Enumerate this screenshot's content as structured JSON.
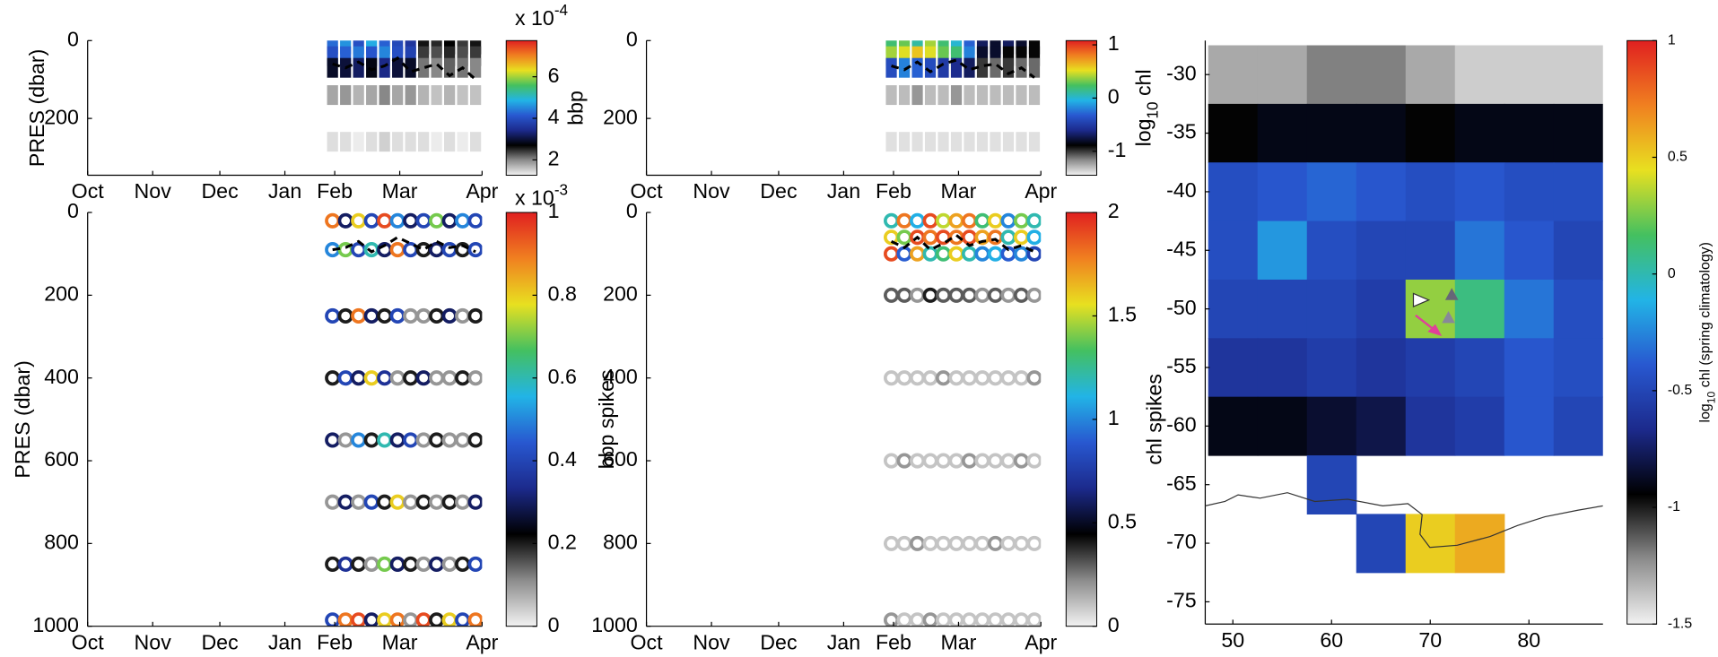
{
  "chart_data": [
    {
      "type": "scatter",
      "marker": "filled",
      "xlim": [
        0,
        182
      ],
      "xticks": [
        {
          "value": 0,
          "label": "Oct"
        },
        {
          "value": 30,
          "label": "Nov"
        },
        {
          "value": 61,
          "label": "Dec"
        },
        {
          "value": 91,
          "label": "Jan"
        },
        {
          "value": 114,
          "label": "Feb"
        },
        {
          "value": 144,
          "label": "Mar"
        },
        {
          "value": 182,
          "label": "Apr"
        }
      ],
      "ylim": [
        346,
        0
      ],
      "yticks": [
        0,
        200
      ],
      "y_label": "PRES (dbar)",
      "x": [
        113,
        119,
        125,
        131,
        137,
        143,
        149,
        155,
        161,
        167,
        173,
        179
      ],
      "depths": [
        10,
        40,
        70,
        140,
        260
      ],
      "c": [
        [
          4.3,
          4.0,
          2.9,
          1.8,
          1.4
        ],
        [
          4.6,
          4.2,
          3.0,
          1.9,
          1.4
        ],
        [
          4.0,
          4.4,
          3.2,
          1.7,
          1.3
        ],
        [
          4.8,
          4.1,
          2.8,
          1.8,
          1.4
        ],
        [
          4.2,
          4.5,
          3.4,
          2.0,
          1.5
        ],
        [
          3.9,
          4.0,
          3.0,
          1.8,
          1.4
        ],
        [
          3.6,
          3.8,
          2.9,
          1.9,
          1.4
        ],
        [
          2.6,
          2.4,
          2.1,
          1.7,
          1.4
        ],
        [
          2.5,
          2.3,
          2.0,
          1.6,
          1.3
        ],
        [
          2.7,
          2.5,
          2.2,
          1.7,
          1.4
        ],
        [
          2.4,
          2.3,
          2.1,
          1.6,
          1.3
        ],
        [
          2.6,
          2.4,
          2.0,
          1.6,
          1.4
        ]
      ],
      "line": {
        "x": [
          113,
          119,
          125,
          131,
          137,
          143,
          149,
          155,
          161,
          167,
          173,
          179
        ],
        "y": [
          60,
          70,
          55,
          75,
          65,
          45,
          80,
          70,
          60,
          90,
          70,
          100
        ]
      },
      "line_color": "#000000",
      "line_style": "dashed",
      "clim": [
        1.26,
        7.74
      ],
      "cticks": [
        2,
        4,
        6
      ],
      "colorbar_label": [
        "bbp"
      ],
      "colorbar_multiplier": [
        "x 10",
        "-4"
      ],
      "colormap": [
        "#f2f2f2",
        "#8c8c8c",
        "#000000",
        "#1c2a8c",
        "#2858d0",
        "#22b4e6",
        "#44c060",
        "#e8e020",
        "#f08020",
        "#e02020"
      ]
    },
    {
      "type": "scatter",
      "marker": "filled",
      "xlim": [
        0,
        182
      ],
      "xticks": [
        {
          "value": 0,
          "label": "Oct"
        },
        {
          "value": 30,
          "label": "Nov"
        },
        {
          "value": 61,
          "label": "Dec"
        },
        {
          "value": 91,
          "label": "Jan"
        },
        {
          "value": 114,
          "label": "Feb"
        },
        {
          "value": 144,
          "label": "Mar"
        },
        {
          "value": 182,
          "label": "Apr"
        }
      ],
      "ylim": [
        346,
        0
      ],
      "yticks": [
        0,
        200
      ],
      "x": [
        113,
        119,
        125,
        131,
        137,
        143,
        149,
        155,
        161,
        167,
        173,
        179
      ],
      "depths": [
        10,
        40,
        70,
        140,
        260
      ],
      "c": [
        [
          0.2,
          0.4,
          -0.4,
          -1.3,
          -1.4
        ],
        [
          0.3,
          0.5,
          -0.2,
          -1.3,
          -1.4
        ],
        [
          0.1,
          0.6,
          -0.3,
          -1.2,
          -1.4
        ],
        [
          0.4,
          0.5,
          -0.4,
          -1.3,
          -1.4
        ],
        [
          0.2,
          0.3,
          -0.5,
          -1.3,
          -1.4
        ],
        [
          0.0,
          0.2,
          -0.6,
          -1.2,
          -1.4
        ],
        [
          -0.3,
          -0.2,
          -0.7,
          -1.3,
          -1.4
        ],
        [
          -0.7,
          -0.8,
          -1.0,
          -1.3,
          -1.4
        ],
        [
          -0.8,
          -0.8,
          -1.1,
          -1.3,
          -1.4
        ],
        [
          -0.7,
          -0.9,
          -1.0,
          -1.3,
          -1.4
        ],
        [
          -0.8,
          -0.9,
          -1.1,
          -1.3,
          -1.4
        ],
        [
          -0.9,
          -0.9,
          -1.1,
          -1.3,
          -1.4
        ]
      ],
      "line": {
        "x": [
          113,
          119,
          125,
          131,
          137,
          143,
          149,
          155,
          161,
          167,
          173,
          179
        ],
        "y": [
          65,
          75,
          55,
          80,
          60,
          50,
          75,
          65,
          60,
          85,
          70,
          95
        ]
      },
      "line_color": "#000000",
      "line_style": "dashed",
      "clim": [
        -1.45,
        1.08
      ],
      "cticks": [
        -1,
        0,
        1
      ],
      "colorbar_label": [
        "log",
        "10",
        " chl"
      ],
      "colormap": [
        "#f2f2f2",
        "#8c8c8c",
        "#000000",
        "#1c2a8c",
        "#2858d0",
        "#22b4e6",
        "#44c060",
        "#e8e020",
        "#f08020",
        "#e02020"
      ]
    },
    {
      "type": "scatter",
      "marker": "ring",
      "xlim": [
        0,
        182
      ],
      "xticks": [
        {
          "value": 0,
          "label": "Oct"
        },
        {
          "value": 30,
          "label": "Nov"
        },
        {
          "value": 61,
          "label": "Dec"
        },
        {
          "value": 91,
          "label": "Jan"
        },
        {
          "value": 114,
          "label": "Feb"
        },
        {
          "value": 144,
          "label": "Mar"
        },
        {
          "value": 182,
          "label": "Apr"
        }
      ],
      "ylim": [
        1000,
        0
      ],
      "yticks": [
        0,
        200,
        400,
        600,
        800,
        1000
      ],
      "y_label": "PRES (dbar)",
      "x": [
        113,
        119,
        125,
        131,
        137,
        143,
        149,
        155,
        161,
        167,
        173,
        179
      ],
      "depths": [
        20,
        90,
        250,
        400,
        550,
        700,
        850,
        985
      ],
      "c": [
        [
          0.9,
          0.5,
          0.4,
          0.2,
          0.3,
          0.1,
          0.2,
          0.4
        ],
        [
          0.3,
          0.7,
          0.2,
          0.4,
          0.1,
          0.3,
          0.35,
          0.9
        ],
        [
          0.8,
          0.4,
          0.9,
          0.3,
          0.5,
          0.1,
          0.2,
          0.95
        ],
        [
          0.4,
          0.6,
          0.3,
          0.8,
          0.2,
          0.4,
          0.1,
          0.3
        ],
        [
          0.95,
          0.3,
          0.2,
          0.35,
          0.6,
          0.2,
          0.7,
          0.8
        ],
        [
          0.5,
          0.9,
          0.4,
          0.1,
          0.3,
          0.8,
          0.3,
          0.9
        ],
        [
          0.3,
          0.4,
          0.1,
          0.2,
          0.4,
          0.1,
          0.2,
          0.1
        ],
        [
          0.4,
          0.2,
          0.1,
          0.3,
          0.1,
          0.2,
          0.1,
          0.95
        ],
        [
          0.7,
          0.3,
          0.2,
          0.1,
          0.2,
          0.1,
          0.3,
          0.2
        ],
        [
          0.3,
          0.4,
          0.3,
          0.1,
          0.1,
          0.2,
          0.1,
          0.8
        ],
        [
          0.5,
          0.2,
          0.1,
          0.2,
          0.1,
          0.1,
          0.2,
          0.4
        ],
        [
          0.4,
          0.4,
          0.2,
          0.1,
          0.2,
          0.3,
          0.4,
          0.9
        ]
      ],
      "line": {
        "x": [
          113,
          119,
          125,
          131,
          137,
          143,
          149,
          155,
          161,
          167,
          173,
          179
        ],
        "y": [
          90,
          85,
          70,
          95,
          80,
          60,
          75,
          90,
          70,
          85,
          80,
          95
        ]
      },
      "line_color": "#000000",
      "line_style": "dashed",
      "clim": [
        0,
        1
      ],
      "cticks": [
        0,
        0.2,
        0.4,
        0.6,
        0.8,
        1
      ],
      "colorbar_label": [
        "bbp spikes"
      ],
      "colorbar_multiplier": [
        "x 10",
        "-3"
      ],
      "colormap": [
        "#f2f2f2",
        "#8c8c8c",
        "#000000",
        "#1c2a8c",
        "#2858d0",
        "#22b4e6",
        "#44c060",
        "#e8e020",
        "#f08020",
        "#e02020"
      ]
    },
    {
      "type": "scatter",
      "marker": "ring",
      "xlim": [
        0,
        182
      ],
      "xticks": [
        {
          "value": 0,
          "label": "Oct"
        },
        {
          "value": 30,
          "label": "Nov"
        },
        {
          "value": 61,
          "label": "Dec"
        },
        {
          "value": 91,
          "label": "Jan"
        },
        {
          "value": 114,
          "label": "Feb"
        },
        {
          "value": 144,
          "label": "Mar"
        },
        {
          "value": 182,
          "label": "Apr"
        }
      ],
      "ylim": [
        1000,
        0
      ],
      "yticks": [
        0,
        200,
        400,
        600,
        800,
        1000
      ],
      "x": [
        113,
        119,
        125,
        131,
        137,
        143,
        149,
        155,
        161,
        167,
        173,
        179
      ],
      "depths": [
        20,
        60,
        100,
        200,
        400,
        600,
        800,
        985
      ],
      "c": [
        [
          1.2,
          1.6,
          1.9,
          0.3,
          0.1,
          0.1,
          0.1,
          0.2
        ],
        [
          1.8,
          1.4,
          0.9,
          0.3,
          0.1,
          0.2,
          0.1,
          0.1
        ],
        [
          1.1,
          1.9,
          1.7,
          0.2,
          0.1,
          0.1,
          0.2,
          0.1
        ],
        [
          1.9,
          1.8,
          1.2,
          0.4,
          0.1,
          0.1,
          0.1,
          0.2
        ],
        [
          1.5,
          1.9,
          1.3,
          0.3,
          0.2,
          0.1,
          0.1,
          0.1
        ],
        [
          1.7,
          1.8,
          1.6,
          0.3,
          0.1,
          0.1,
          0.1,
          0.1
        ],
        [
          1.8,
          1.9,
          1.2,
          0.3,
          0.1,
          0.2,
          0.1,
          0.1
        ],
        [
          1.3,
          1.7,
          1.0,
          0.2,
          0.1,
          0.1,
          0.1,
          0.1
        ],
        [
          1.6,
          1.8,
          1.1,
          0.3,
          0.1,
          0.1,
          0.2,
          0.1
        ],
        [
          1.0,
          1.2,
          0.9,
          0.2,
          0.1,
          0.1,
          0.1,
          0.1
        ],
        [
          1.4,
          1.6,
          1.0,
          0.3,
          0.1,
          0.2,
          0.1,
          0.1
        ],
        [
          1.2,
          1.1,
          0.8,
          0.2,
          0.2,
          0.1,
          0.1,
          0.1
        ]
      ],
      "line": {
        "x": [
          113,
          119,
          125,
          131,
          137,
          143,
          149,
          155,
          161,
          167,
          173,
          179
        ],
        "y": [
          70,
          85,
          60,
          90,
          75,
          55,
          80,
          70,
          65,
          90,
          80,
          95
        ]
      },
      "line_color": "#000000",
      "line_style": "dashed",
      "clim": [
        0,
        2
      ],
      "cticks": [
        0,
        0.5,
        1,
        1.5,
        2
      ],
      "colorbar_label": [
        "chl spikes"
      ],
      "colormap": [
        "#f2f2f2",
        "#8c8c8c",
        "#000000",
        "#1c2a8c",
        "#2858d0",
        "#22b4e6",
        "#44c060",
        "#e8e020",
        "#f08020",
        "#e02020"
      ]
    },
    {
      "type": "heatmap",
      "xlim": [
        47.2,
        87.5
      ],
      "xticks": [
        50,
        60,
        70,
        80
      ],
      "ylim": [
        -76.9,
        -27.1
      ],
      "yticks": [
        -30,
        -35,
        -40,
        -45,
        -50,
        -55,
        -60,
        -65,
        -70,
        -75
      ],
      "lon": [
        50,
        55,
        60,
        65,
        70,
        75,
        80,
        85
      ],
      "lat": [
        -30,
        -35,
        -40,
        -45,
        -50,
        -55,
        -60,
        -65,
        -70
      ],
      "z": [
        [
          -1.3,
          -1.3,
          -1.2,
          -1.2,
          -1.3,
          -1.4,
          -1.4,
          -1.4
        ],
        [
          -0.95,
          -0.9,
          -0.9,
          -0.9,
          -0.95,
          -0.9,
          -0.9,
          -0.9
        ],
        [
          -0.45,
          -0.4,
          -0.35,
          -0.4,
          -0.45,
          -0.4,
          -0.45,
          -0.45
        ],
        [
          -0.45,
          -0.2,
          -0.45,
          -0.5,
          -0.5,
          -0.3,
          -0.4,
          -0.5
        ],
        [
          -0.5,
          -0.5,
          -0.5,
          -0.55,
          0.3,
          0.1,
          -0.3,
          -0.45
        ],
        [
          -0.6,
          -0.6,
          -0.55,
          -0.6,
          -0.55,
          -0.5,
          -0.4,
          -0.45
        ],
        [
          -0.9,
          -0.9,
          -0.85,
          -0.8,
          -0.6,
          -0.55,
          -0.4,
          -0.5
        ],
        [
          null,
          null,
          -0.5,
          null,
          null,
          null,
          null,
          null
        ],
        [
          null,
          null,
          null,
          -0.5,
          0.5,
          0.6,
          null,
          null
        ]
      ],
      "clim": [
        -1.5,
        1
      ],
      "cticks": [
        1,
        0.5,
        0,
        -0.5,
        -1,
        -1.5
      ],
      "colorbar_label": [
        "log",
        "10",
        " chl (spring climatology)"
      ],
      "colormap": [
        "#f2f2f2",
        "#8c8c8c",
        "#000000",
        "#1c2a8c",
        "#2858d0",
        "#22b4e6",
        "#44c060",
        "#e8e020",
        "#f08020",
        "#e02020"
      ]
    }
  ]
}
